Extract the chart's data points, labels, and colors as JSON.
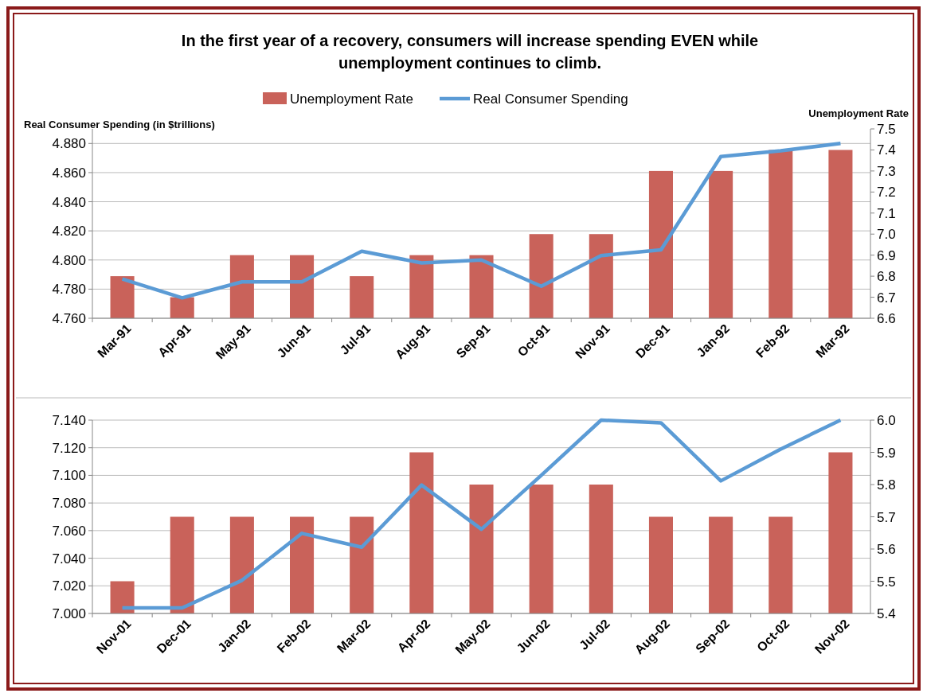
{
  "chart_data": [
    {
      "type": "bar",
      "title": "In the first year of a recovery, consumers will increase spending EVEN while unemployment continues to climb.",
      "ylabel": "Real Consumer Spending (in $trillions)",
      "y2label": "Unemployment Rate",
      "legend": "top",
      "grid": "y",
      "marker": "none",
      "categories": [
        "Mar-91",
        "Apr-91",
        "May-91",
        "Jun-91",
        "Jul-91",
        "Aug-91",
        "Sep-91",
        "Oct-91",
        "Nov-91",
        "Dec-91",
        "Jan-92",
        "Feb-92",
        "Mar-92"
      ],
      "series": [
        {
          "name": "Unemployment Rate",
          "axis": "y2",
          "color": "#c9625a",
          "values": [
            6.8,
            6.7,
            6.9,
            6.9,
            6.8,
            6.9,
            6.9,
            7.0,
            7.0,
            7.3,
            7.3,
            7.4,
            7.4
          ]
        },
        {
          "name": "Real Consumer Spending",
          "type": "line",
          "axis": "y",
          "color": "#5b9bd5",
          "values": [
            4.787,
            4.774,
            4.785,
            4.785,
            4.806,
            4.798,
            4.8,
            4.782,
            4.803,
            4.807,
            4.871,
            4.875,
            4.88
          ]
        }
      ],
      "ylim": [
        4.76,
        4.89
      ],
      "yticks": [
        {
          "value": 4.76,
          "label": "4.760"
        },
        {
          "value": 4.78,
          "label": "4.780"
        },
        {
          "value": 4.8,
          "label": "4.800"
        },
        {
          "value": 4.82,
          "label": "4.820"
        },
        {
          "value": 4.84,
          "label": "4.840"
        },
        {
          "value": 4.86,
          "label": "4.860"
        },
        {
          "value": 4.88,
          "label": "4.880"
        }
      ],
      "y2lim": [
        6.6,
        7.5
      ],
      "y2ticks": [
        6.6,
        6.7,
        6.8,
        6.9,
        {
          "value": 7.0,
          "label": "7.0"
        },
        7.1,
        7.2,
        7.3,
        7.4,
        7.5
      ]
    },
    {
      "type": "bar",
      "grid": "y",
      "legend": false,
      "marker": "none",
      "categories": [
        "Nov-01",
        "Dec-01",
        "Jan-02",
        "Feb-02",
        "Mar-02",
        "Apr-02",
        "May-02",
        "Jun-02",
        "Jul-02",
        "Aug-02",
        "Sep-02",
        "Oct-02",
        "Nov-02"
      ],
      "series": [
        {
          "axis": "y2",
          "color": "#c9625a",
          "values": [
            5.5,
            5.7,
            5.7,
            5.7,
            5.7,
            5.9,
            5.8,
            5.8,
            5.8,
            5.7,
            5.7,
            5.7,
            5.9
          ]
        },
        {
          "type": "line",
          "axis": "y",
          "color": "#5b9bd5",
          "values": [
            7.004,
            7.004,
            7.024,
            7.058,
            7.048,
            7.093,
            7.061,
            7.1,
            7.14,
            7.138,
            7.096,
            7.119,
            7.14
          ]
        }
      ],
      "ylim": [
        7.0,
        7.14
      ],
      "yticks": [
        {
          "value": 7.0,
          "label": "7.000"
        },
        {
          "value": 7.02,
          "label": "7.020"
        },
        {
          "value": 7.04,
          "label": "7.040"
        },
        {
          "value": 7.06,
          "label": "7.060"
        },
        {
          "value": 7.08,
          "label": "7.080"
        },
        {
          "value": 7.1,
          "label": "7.100"
        },
        {
          "value": 7.12,
          "label": "7.120"
        },
        {
          "value": 7.14,
          "label": "7.140"
        }
      ],
      "y2lim": [
        5.4,
        6.0
      ],
      "y2ticks": [
        5.4,
        5.5,
        5.6,
        5.7,
        5.8,
        5.9,
        {
          "value": 6.0,
          "label": "6.0"
        }
      ]
    }
  ]
}
